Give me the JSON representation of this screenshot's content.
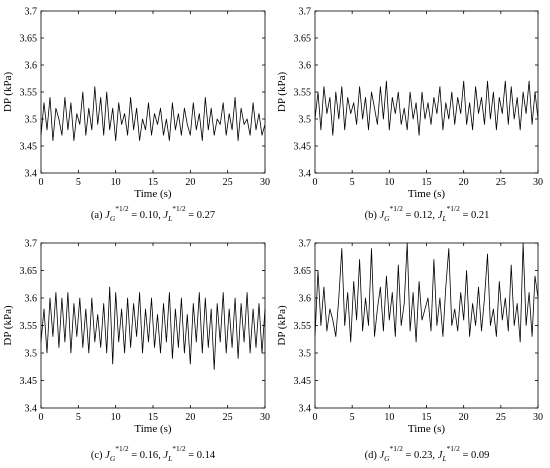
{
  "chart_data": [
    {
      "type": "line",
      "caption": {
        "prefix": "(a)",
        "jg_value": "0.10",
        "jl_value": "0.27"
      },
      "xlabel": "Time (s)",
      "ylabel": "DP (kPa)",
      "xlim": [
        0,
        30
      ],
      "ylim": [
        3.4,
        3.7
      ],
      "xticks": [
        "0",
        "5",
        "10",
        "15",
        "20",
        "25",
        "30"
      ],
      "yticks": [
        "3.4",
        "3.45",
        "3.5",
        "3.55",
        "3.6",
        "3.65",
        "3.7"
      ],
      "series": [
        {
          "x": [
            0,
            0.4,
            0.8,
            1.2,
            1.6,
            2.0,
            2.4,
            2.8,
            3.2,
            3.6,
            4.0,
            4.4,
            4.8,
            5.2,
            5.6,
            6.0,
            6.4,
            6.8,
            7.2,
            7.6,
            8.0,
            8.4,
            8.8,
            9.2,
            9.6,
            10.0,
            10.4,
            10.8,
            11.2,
            11.6,
            12.0,
            12.4,
            12.8,
            13.2,
            13.6,
            14.0,
            14.4,
            14.8,
            15.2,
            15.6,
            16.0,
            16.4,
            16.8,
            17.2,
            17.6,
            18.0,
            18.4,
            18.8,
            19.2,
            19.6,
            20.0,
            20.4,
            20.8,
            21.2,
            21.6,
            22.0,
            22.4,
            22.8,
            23.2,
            23.6,
            24.0,
            24.4,
            24.8,
            25.2,
            25.6,
            26.0,
            26.4,
            26.8,
            27.2,
            27.6,
            28.0,
            28.4,
            28.8,
            29.2,
            29.6,
            30.0
          ],
          "values": [
            3.47,
            3.53,
            3.48,
            3.54,
            3.46,
            3.52,
            3.5,
            3.47,
            3.54,
            3.48,
            3.53,
            3.46,
            3.51,
            3.49,
            3.55,
            3.47,
            3.52,
            3.48,
            3.56,
            3.49,
            3.54,
            3.47,
            3.55,
            3.48,
            3.52,
            3.46,
            3.53,
            3.49,
            3.51,
            3.47,
            3.54,
            3.48,
            3.52,
            3.46,
            3.5,
            3.48,
            3.53,
            3.47,
            3.51,
            3.49,
            3.52,
            3.47,
            3.5,
            3.46,
            3.53,
            3.48,
            3.51,
            3.47,
            3.52,
            3.49,
            3.47,
            3.53,
            3.48,
            3.51,
            3.46,
            3.54,
            3.48,
            3.52,
            3.47,
            3.5,
            3.49,
            3.53,
            3.47,
            3.51,
            3.48,
            3.54,
            3.46,
            3.52,
            3.49,
            3.5,
            3.47,
            3.53,
            3.48,
            3.51,
            3.47,
            3.49
          ]
        }
      ]
    },
    {
      "type": "line",
      "caption": {
        "prefix": "(b)",
        "jg_value": "0.12",
        "jl_value": "0.21"
      },
      "xlabel": "Time (s)",
      "ylabel": "DP (kPa)",
      "xlim": [
        0,
        30
      ],
      "ylim": [
        3.4,
        3.7
      ],
      "xticks": [
        "0",
        "5",
        "10",
        "15",
        "20",
        "25",
        "30"
      ],
      "yticks": [
        "3.4",
        "3.45",
        "3.5",
        "3.55",
        "3.6",
        "3.65",
        "3.7"
      ],
      "series": [
        {
          "x": [
            0,
            0.4,
            0.8,
            1.2,
            1.6,
            2.0,
            2.4,
            2.8,
            3.2,
            3.6,
            4.0,
            4.4,
            4.8,
            5.2,
            5.6,
            6.0,
            6.4,
            6.8,
            7.2,
            7.6,
            8.0,
            8.4,
            8.8,
            9.2,
            9.6,
            10.0,
            10.4,
            10.8,
            11.2,
            11.6,
            12.0,
            12.4,
            12.8,
            13.2,
            13.6,
            14.0,
            14.4,
            14.8,
            15.2,
            15.6,
            16.0,
            16.4,
            16.8,
            17.2,
            17.6,
            18.0,
            18.4,
            18.8,
            19.2,
            19.6,
            20.0,
            20.4,
            20.8,
            21.2,
            21.6,
            22.0,
            22.4,
            22.8,
            23.2,
            23.6,
            24.0,
            24.4,
            24.8,
            25.2,
            25.6,
            26.0,
            26.4,
            26.8,
            27.2,
            27.6,
            28.0,
            28.4,
            28.8,
            29.2,
            29.6,
            30.0
          ],
          "values": [
            3.5,
            3.55,
            3.48,
            3.56,
            3.51,
            3.54,
            3.47,
            3.55,
            3.5,
            3.56,
            3.48,
            3.54,
            3.51,
            3.53,
            3.49,
            3.56,
            3.5,
            3.54,
            3.48,
            3.55,
            3.52,
            3.49,
            3.56,
            3.5,
            3.57,
            3.48,
            3.54,
            3.51,
            3.55,
            3.49,
            3.52,
            3.48,
            3.55,
            3.5,
            3.53,
            3.47,
            3.55,
            3.5,
            3.53,
            3.49,
            3.54,
            3.51,
            3.56,
            3.48,
            3.53,
            3.5,
            3.55,
            3.49,
            3.54,
            3.51,
            3.57,
            3.49,
            3.53,
            3.48,
            3.56,
            3.51,
            3.54,
            3.49,
            3.57,
            3.5,
            3.55,
            3.48,
            3.54,
            3.51,
            3.57,
            3.49,
            3.56,
            3.5,
            3.54,
            3.48,
            3.55,
            3.51,
            3.57,
            3.49,
            3.55,
            3.5
          ]
        }
      ]
    },
    {
      "type": "line",
      "caption": {
        "prefix": "(c)",
        "jg_value": "0.16",
        "jl_value": "0.14"
      },
      "xlabel": "Time (s)",
      "ylabel": "DP (kPa)",
      "xlim": [
        0,
        30
      ],
      "ylim": [
        3.4,
        3.7
      ],
      "xticks": [
        "0",
        "5",
        "10",
        "15",
        "20",
        "25",
        "30"
      ],
      "yticks": [
        "3.4",
        "3.45",
        "3.5",
        "3.55",
        "3.6",
        "3.65",
        "3.7"
      ],
      "series": [
        {
          "x": [
            0,
            0.4,
            0.8,
            1.2,
            1.6,
            2.0,
            2.4,
            2.8,
            3.2,
            3.6,
            4.0,
            4.4,
            4.8,
            5.2,
            5.6,
            6.0,
            6.4,
            6.8,
            7.2,
            7.6,
            8.0,
            8.4,
            8.8,
            9.2,
            9.6,
            10.0,
            10.4,
            10.8,
            11.2,
            11.6,
            12.0,
            12.4,
            12.8,
            13.2,
            13.6,
            14.0,
            14.4,
            14.8,
            15.2,
            15.6,
            16.0,
            16.4,
            16.8,
            17.2,
            17.6,
            18.0,
            18.4,
            18.8,
            19.2,
            19.6,
            20.0,
            20.4,
            20.8,
            21.2,
            21.6,
            22.0,
            22.4,
            22.8,
            23.2,
            23.6,
            24.0,
            24.4,
            24.8,
            25.2,
            25.6,
            26.0,
            26.4,
            26.8,
            27.2,
            27.6,
            28.0,
            28.4,
            28.8,
            29.2,
            29.6,
            30.0
          ],
          "values": [
            3.52,
            3.58,
            3.5,
            3.6,
            3.53,
            3.61,
            3.51,
            3.6,
            3.52,
            3.61,
            3.5,
            3.59,
            3.53,
            3.6,
            3.51,
            3.58,
            3.5,
            3.6,
            3.52,
            3.57,
            3.51,
            3.59,
            3.5,
            3.62,
            3.48,
            3.61,
            3.52,
            3.58,
            3.5,
            3.6,
            3.51,
            3.59,
            3.53,
            3.61,
            3.5,
            3.58,
            3.52,
            3.6,
            3.51,
            3.57,
            3.5,
            3.59,
            3.52,
            3.61,
            3.49,
            3.58,
            3.51,
            3.6,
            3.5,
            3.57,
            3.48,
            3.59,
            3.52,
            3.61,
            3.5,
            3.6,
            3.51,
            3.58,
            3.47,
            3.59,
            3.52,
            3.61,
            3.5,
            3.58,
            3.51,
            3.6,
            3.49,
            3.59,
            3.52,
            3.61,
            3.5,
            3.58,
            3.51,
            3.59,
            3.5,
            3.58
          ]
        }
      ]
    },
    {
      "type": "line",
      "caption": {
        "prefix": "(d)",
        "jg_value": "0.23",
        "jl_value": "0.09"
      },
      "xlabel": "Time (s)",
      "ylabel": "DP (kPa)",
      "xlim": [
        0,
        30
      ],
      "ylim": [
        3.4,
        3.7
      ],
      "xticks": [
        "0",
        "5",
        "10",
        "15",
        "20",
        "25",
        "30"
      ],
      "yticks": [
        "3.4",
        "3.45",
        "3.5",
        "3.55",
        "3.6",
        "3.65",
        "3.7"
      ],
      "series": [
        {
          "x": [
            0,
            0.4,
            0.8,
            1.2,
            1.6,
            2.0,
            2.4,
            2.8,
            3.2,
            3.6,
            4.0,
            4.4,
            4.8,
            5.2,
            5.6,
            6.0,
            6.4,
            6.8,
            7.2,
            7.6,
            8.0,
            8.4,
            8.8,
            9.2,
            9.6,
            10.0,
            10.4,
            10.8,
            11.2,
            11.6,
            12.0,
            12.4,
            12.8,
            13.2,
            13.6,
            14.0,
            14.4,
            14.8,
            15.2,
            15.6,
            16.0,
            16.4,
            16.8,
            17.2,
            17.6,
            18.0,
            18.4,
            18.8,
            19.2,
            19.6,
            20.0,
            20.4,
            20.8,
            21.2,
            21.6,
            22.0,
            22.4,
            22.8,
            23.2,
            23.6,
            24.0,
            24.4,
            24.8,
            25.2,
            25.6,
            26.0,
            26.4,
            26.8,
            27.2,
            27.6,
            28.0,
            28.4,
            28.8,
            29.2,
            29.6,
            30.0
          ],
          "values": [
            3.53,
            3.65,
            3.55,
            3.62,
            3.54,
            3.58,
            3.56,
            3.53,
            3.6,
            3.69,
            3.55,
            3.61,
            3.52,
            3.63,
            3.56,
            3.67,
            3.54,
            3.6,
            3.55,
            3.69,
            3.53,
            3.58,
            3.62,
            3.54,
            3.64,
            3.56,
            3.61,
            3.53,
            3.66,
            3.55,
            3.59,
            3.7,
            3.54,
            3.61,
            3.52,
            3.63,
            3.56,
            3.58,
            3.6,
            3.54,
            3.67,
            3.55,
            3.6,
            3.53,
            3.62,
            3.69,
            3.55,
            3.58,
            3.54,
            3.61,
            3.56,
            3.65,
            3.53,
            3.59,
            3.55,
            3.62,
            3.54,
            3.6,
            3.68,
            3.55,
            3.58,
            3.53,
            3.63,
            3.56,
            3.6,
            3.54,
            3.66,
            3.55,
            3.59,
            3.52,
            3.7,
            3.55,
            3.61,
            3.53,
            3.64,
            3.6
          ]
        }
      ]
    }
  ],
  "caption_symbols": {
    "j": "J",
    "g_sub": "G",
    "l_sub": "L",
    "exponent": "*1/2",
    "equals": " = ",
    "sep": ", "
  }
}
